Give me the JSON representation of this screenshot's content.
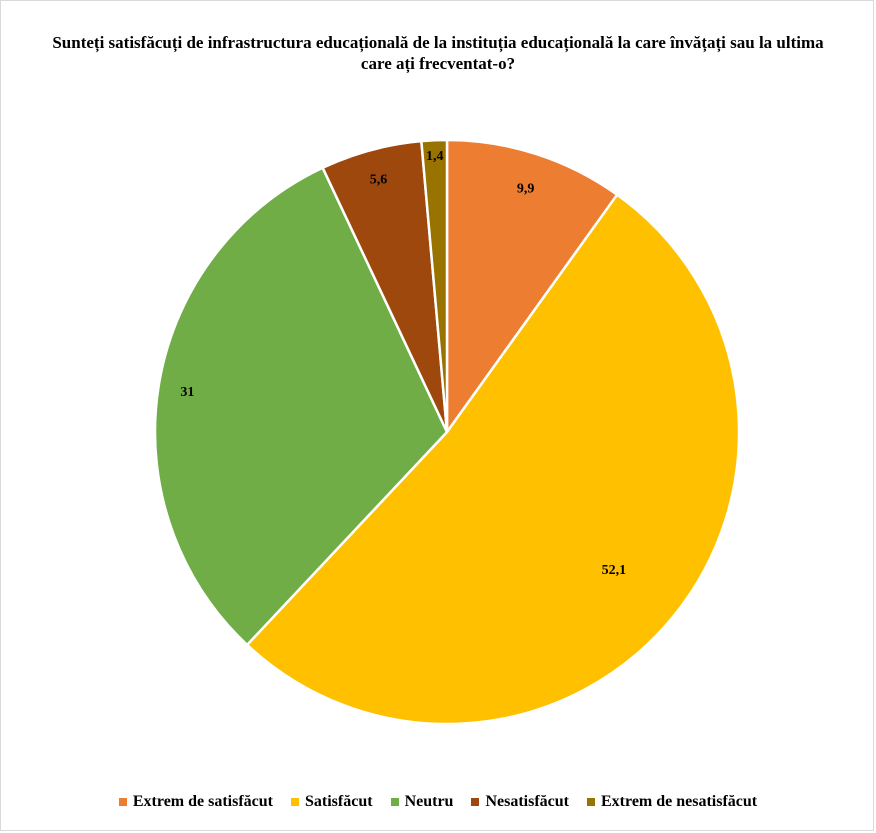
{
  "chart_data": {
    "type": "pie",
    "title": "Sunteți satisfăcuți de infrastructura  educațională de la instituția  educațională la care învățați sau la ultima  care ați frecventat-o?",
    "categories": [
      "Extrem de satisfăcut",
      "Satisfăcut",
      "Neutru",
      "Nesatisfăcut",
      "Extrem de nesatisfăcut"
    ],
    "values": [
      9.9,
      52.1,
      31,
      5.6,
      1.4
    ],
    "data_labels": [
      "9,9",
      "52,1",
      "31",
      "5,6",
      "1,4"
    ],
    "colors": [
      "#ED7D31",
      "#FFC000",
      "#70AD47",
      "#9E480E",
      "#997300"
    ],
    "legend_position": "bottom"
  }
}
